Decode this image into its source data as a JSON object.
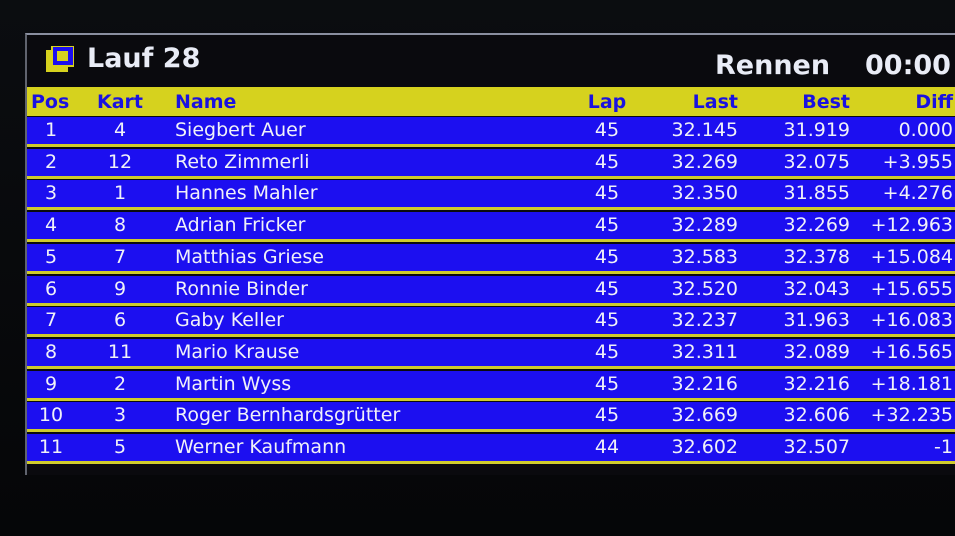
{
  "header": {
    "title": "Lauf 28",
    "mode": "Rennen",
    "time": "00:00"
  },
  "table": {
    "columns": [
      "Pos",
      "Kart",
      "Name",
      "Lap",
      "Last",
      "Best",
      "Diff"
    ],
    "rows": [
      [
        "1",
        "4",
        "Siegbert Auer",
        "45",
        "32.145",
        "31.919",
        "0.000"
      ],
      [
        "2",
        "12",
        "Reto Zimmerli",
        "45",
        "32.269",
        "32.075",
        "+3.955"
      ],
      [
        "3",
        "1",
        "Hannes Mahler",
        "45",
        "32.350",
        "31.855",
        "+4.276"
      ],
      [
        "4",
        "8",
        "Adrian Fricker",
        "45",
        "32.289",
        "32.269",
        "+12.963"
      ],
      [
        "5",
        "7",
        "Matthias Griese",
        "45",
        "32.583",
        "32.378",
        "+15.084"
      ],
      [
        "6",
        "9",
        "Ronnie Binder",
        "45",
        "32.520",
        "32.043",
        "+15.655"
      ],
      [
        "7",
        "6",
        "Gaby Keller",
        "45",
        "32.237",
        "31.963",
        "+16.083"
      ],
      [
        "8",
        "11",
        "Mario Krause",
        "45",
        "32.311",
        "32.089",
        "+16.565"
      ],
      [
        "9",
        "2",
        "Martin Wyss",
        "45",
        "32.216",
        "32.216",
        "+18.181"
      ],
      [
        "10",
        "3",
        "Roger Bernhardsgrütter",
        "45",
        "32.669",
        "32.606",
        "+32.235"
      ],
      [
        "11",
        "5",
        "Werner Kaufmann",
        "44",
        "32.602",
        "32.507",
        "-1"
      ]
    ]
  }
}
